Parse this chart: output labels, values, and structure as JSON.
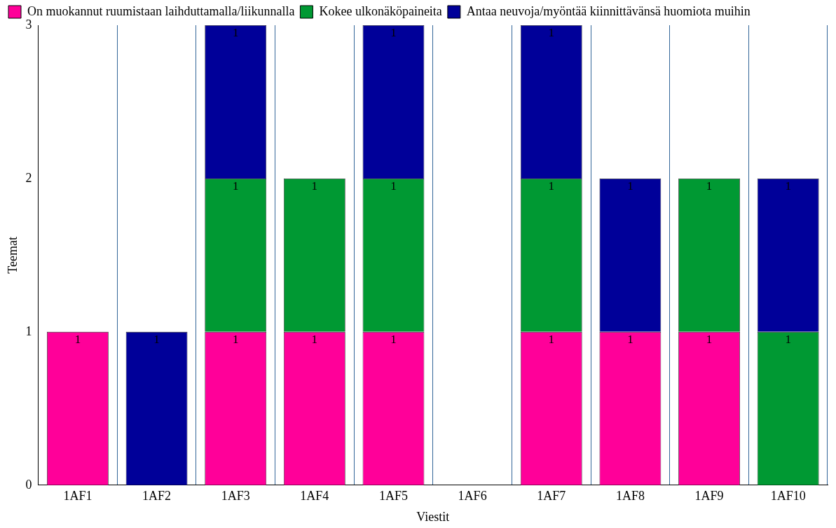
{
  "chart_data": {
    "type": "bar",
    "stacked": true,
    "xlabel": "Viestit",
    "ylabel": "Teemat",
    "categories": [
      "1AF1",
      "1AF2",
      "1AF3",
      "1AF4",
      "1AF5",
      "1AF6",
      "1AF7",
      "1AF8",
      "1AF9",
      "1AF10"
    ],
    "series": [
      {
        "name": "On muokannut ruumistaan laihduttamalla/liikunnalla",
        "color": "#ff0099",
        "values": [
          1,
          null,
          1,
          1,
          1,
          null,
          1,
          1,
          1,
          null
        ]
      },
      {
        "name": "Kokee ulkonäköpaineita",
        "color": "#009933",
        "values": [
          null,
          null,
          1,
          1,
          1,
          null,
          1,
          null,
          1,
          1
        ]
      },
      {
        "name": "Antaa neuvoja/myöntää kiinnittävänsä huomiota muihin",
        "color": "#000099",
        "values": [
          null,
          1,
          1,
          null,
          1,
          null,
          1,
          1,
          null,
          1
        ]
      }
    ],
    "ylim": [
      0,
      3
    ],
    "yticks": [
      0,
      1,
      2,
      3
    ],
    "grid": "x",
    "legend": "top left",
    "data_labels": true
  }
}
